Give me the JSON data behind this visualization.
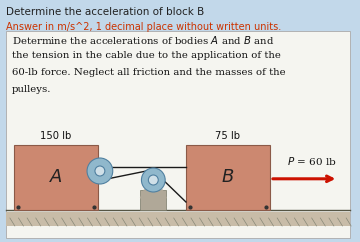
{
  "bg_color": "#c2d8ea",
  "white_box_facecolor": "#f5f5f0",
  "block_color": "#cc8870",
  "block_edge_color": "#8b5a48",
  "title1": "Determine the acceleration of block B",
  "title2": "Answer in m/s^2, 1 decimal place without written units.",
  "title1_color": "#222222",
  "title2_color": "#cc3300",
  "prob_line1": "Determine the accelerations of bodies $A$ and $B$ and",
  "prob_line2": "the tension in the cable due to the application of the",
  "prob_line3": "60-lb force. Neglect all friction and the masses of the",
  "prob_line4": "pulleys.",
  "label_A": "$A$",
  "label_B": "$B$",
  "label_150": "150 lb",
  "label_75": "75 lb",
  "label_P": "$P$ = 60 lb",
  "pulley_outer_color": "#90b8cc",
  "pulley_inner_color": "#d0e0e8",
  "pulley_edge_color": "#5080a0",
  "cable_color": "#1a1a1a",
  "arrow_color": "#cc1100",
  "ground_top_color": "#b0a890",
  "ground_fill_color": "#c8bca8",
  "support_color": "#b0a898",
  "support_edge": "#777766",
  "dot_color": "#333333"
}
